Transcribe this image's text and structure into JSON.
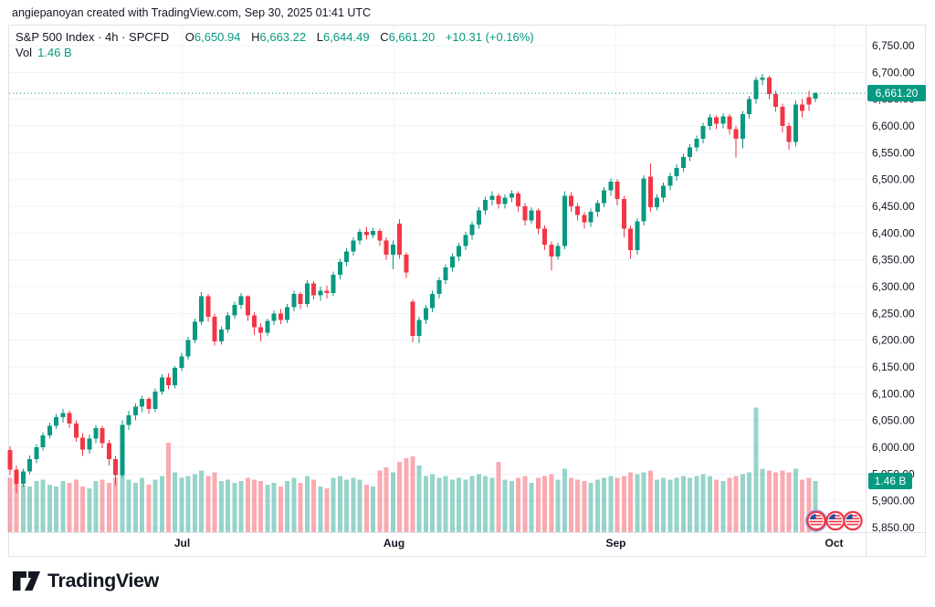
{
  "attribution": "angiepanoyan created with TradingView.com, Sep 30, 2025 01:41 UTC",
  "legend": {
    "title": "S&P 500 Index · 4h · SPCFD",
    "ohlc": [
      {
        "label": "O",
        "value": "6,650.94"
      },
      {
        "label": "H",
        "value": "6,663.22"
      },
      {
        "label": "L",
        "value": "6,644.49"
      },
      {
        "label": "C",
        "value": "6,661.20"
      }
    ],
    "change": "+10.31 (+0.16%)",
    "vol_label": "Vol",
    "vol_value": "1.46 B"
  },
  "price_axis": {
    "labels": [
      "6,750.00",
      "6,700.00",
      "6,650.00",
      "6,600.00",
      "6,550.00",
      "6,500.00",
      "6,450.00",
      "6,400.00",
      "6,350.00",
      "6,300.00",
      "6,250.00",
      "6,200.00",
      "6,150.00",
      "6,100.00",
      "6,050.00",
      "6,000.00",
      "5,950.00",
      "5,900.00",
      "5,850.00"
    ],
    "tick_prices": [
      6750,
      6700,
      6650,
      6600,
      6550,
      6500,
      6450,
      6400,
      6350,
      6300,
      6250,
      6200,
      6150,
      6100,
      6050,
      6000,
      5950,
      5900,
      5850
    ],
    "price_badge": "6,661.20",
    "volume_badge": "1.46 B"
  },
  "time_axis": {
    "months": [
      {
        "label": "Jul",
        "pos": 0.2132
      },
      {
        "label": "Aug",
        "pos": 0.4762
      },
      {
        "label": "Sep",
        "pos": 0.7518
      },
      {
        "label": "Oct",
        "pos": 1.0227
      }
    ]
  },
  "logo": {
    "wordmark": "TradingView"
  },
  "event_icons": [
    "us-flag-event-icon",
    "us-flag-event-icon",
    "us-flag-event-icon"
  ],
  "colors": {
    "up": "#089981",
    "down": "#f23645",
    "vol_up": "rgba(8,153,129,0.42)",
    "vol_down": "rgba(242,54,69,0.42)",
    "grid": "#f0f3fa",
    "axis_text": "#131722",
    "badge_bg": "#089981",
    "border": "#e0e3eb"
  },
  "chart_data": {
    "type": "candlestick+volume",
    "title": "S&P 500 Index · 4h · SPCFD",
    "symbol": "SPCFD",
    "interval": "4h",
    "last": {
      "open": 6650.94,
      "high": 6663.22,
      "low": 6644.49,
      "close": 6661.2,
      "change": 10.31,
      "change_pct": 0.16,
      "volume_b": 1.46
    },
    "price_range": [
      5850,
      6750
    ],
    "price_tick_step": 50,
    "grid": true,
    "candles_ohlcv": [
      [
        5995,
        6002,
        5948,
        5958,
        1.55
      ],
      [
        5958,
        5966,
        5915,
        5932,
        1.65
      ],
      [
        5932,
        5960,
        5926,
        5955,
        1.35
      ],
      [
        5955,
        5985,
        5950,
        5978,
        1.3
      ],
      [
        5978,
        6006,
        5970,
        6000,
        1.45
      ],
      [
        6000,
        6028,
        5994,
        6022,
        1.5
      ],
      [
        6022,
        6046,
        6016,
        6040,
        1.35
      ],
      [
        6040,
        6062,
        6034,
        6056,
        1.3
      ],
      [
        6056,
        6072,
        6046,
        6064,
        1.45
      ],
      [
        6064,
        6068,
        6036,
        6044,
        1.4
      ],
      [
        6044,
        6050,
        6010,
        6018,
        1.5
      ],
      [
        6018,
        6026,
        5984,
        5996,
        1.3
      ],
      [
        5996,
        6024,
        5988,
        6016,
        1.25
      ],
      [
        6016,
        6042,
        6008,
        6036,
        1.45
      ],
      [
        6036,
        6040,
        5998,
        6008,
        1.5
      ],
      [
        6008,
        6014,
        5966,
        5978,
        1.4
      ],
      [
        5978,
        5984,
        5928,
        5948,
        1.55
      ],
      [
        5948,
        6050,
        5944,
        6042,
        1.7
      ],
      [
        6042,
        6068,
        6032,
        6060,
        1.5
      ],
      [
        6060,
        6082,
        6050,
        6076,
        1.4
      ],
      [
        6076,
        6096,
        6066,
        6090,
        1.55
      ],
      [
        6090,
        6094,
        6062,
        6072,
        1.35
      ],
      [
        6072,
        6110,
        6066,
        6104,
        1.5
      ],
      [
        6104,
        6136,
        6098,
        6130,
        1.6
      ],
      [
        6130,
        6138,
        6108,
        6116,
        2.55
      ],
      [
        6116,
        6152,
        6110,
        6148,
        1.7
      ],
      [
        6148,
        6176,
        6142,
        6170,
        1.55
      ],
      [
        6170,
        6206,
        6164,
        6200,
        1.6
      ],
      [
        6200,
        6240,
        6194,
        6234,
        1.65
      ],
      [
        6234,
        6290,
        6228,
        6282,
        1.75
      ],
      [
        6282,
        6286,
        6234,
        6244,
        1.6
      ],
      [
        6244,
        6250,
        6190,
        6198,
        1.7
      ],
      [
        6198,
        6226,
        6192,
        6220,
        1.45
      ],
      [
        6220,
        6252,
        6214,
        6246,
        1.5
      ],
      [
        6246,
        6272,
        6240,
        6266,
        1.4
      ],
      [
        6266,
        6288,
        6258,
        6282,
        1.45
      ],
      [
        6282,
        6284,
        6236,
        6246,
        1.55
      ],
      [
        6246,
        6252,
        6210,
        6224,
        1.5
      ],
      [
        6224,
        6232,
        6198,
        6214,
        1.45
      ],
      [
        6214,
        6240,
        6208,
        6236,
        1.35
      ],
      [
        6236,
        6256,
        6228,
        6250,
        1.4
      ],
      [
        6250,
        6258,
        6230,
        6238,
        1.3
      ],
      [
        6238,
        6268,
        6232,
        6262,
        1.45
      ],
      [
        6262,
        6292,
        6254,
        6286,
        1.55
      ],
      [
        6286,
        6290,
        6258,
        6268,
        1.4
      ],
      [
        6268,
        6312,
        6262,
        6306,
        1.6
      ],
      [
        6306,
        6310,
        6276,
        6284,
        1.5
      ],
      [
        6284,
        6300,
        6274,
        6292,
        1.3
      ],
      [
        6292,
        6302,
        6278,
        6288,
        1.25
      ],
      [
        6288,
        6328,
        6282,
        6322,
        1.55
      ],
      [
        6322,
        6352,
        6314,
        6346,
        1.6
      ],
      [
        6346,
        6372,
        6338,
        6366,
        1.5
      ],
      [
        6366,
        6392,
        6358,
        6386,
        1.55
      ],
      [
        6386,
        6408,
        6378,
        6402,
        1.5
      ],
      [
        6402,
        6412,
        6388,
        6396,
        1.35
      ],
      [
        6396,
        6410,
        6390,
        6404,
        1.3
      ],
      [
        6404,
        6408,
        6376,
        6386,
        1.75
      ],
      [
        6386,
        6392,
        6350,
        6360,
        1.85
      ],
      [
        6360,
        6386,
        6332,
        6378,
        1.7
      ],
      [
        6418,
        6426,
        6352,
        6360,
        2.0
      ],
      [
        6360,
        6364,
        6316,
        6326,
        2.1
      ],
      [
        6272,
        6276,
        6196,
        6208,
        2.15
      ],
      [
        6208,
        6244,
        6194,
        6238,
        1.9
      ],
      [
        6238,
        6266,
        6230,
        6260,
        1.6
      ],
      [
        6260,
        6292,
        6252,
        6286,
        1.65
      ],
      [
        6286,
        6318,
        6278,
        6312,
        1.55
      ],
      [
        6312,
        6342,
        6304,
        6336,
        1.6
      ],
      [
        6336,
        6362,
        6328,
        6356,
        1.5
      ],
      [
        6356,
        6382,
        6348,
        6376,
        1.55
      ],
      [
        6376,
        6402,
        6368,
        6396,
        1.5
      ],
      [
        6396,
        6422,
        6388,
        6416,
        1.6
      ],
      [
        6416,
        6448,
        6408,
        6442,
        1.65
      ],
      [
        6442,
        6468,
        6434,
        6462,
        1.6
      ],
      [
        6462,
        6478,
        6452,
        6470,
        1.55
      ],
      [
        6470,
        6474,
        6446,
        6454,
        2.0
      ],
      [
        6454,
        6472,
        6446,
        6466,
        1.5
      ],
      [
        6466,
        6480,
        6458,
        6474,
        1.45
      ],
      [
        6474,
        6478,
        6440,
        6450,
        1.55
      ],
      [
        6450,
        6456,
        6414,
        6424,
        1.6
      ],
      [
        6424,
        6448,
        6418,
        6442,
        1.4
      ],
      [
        6442,
        6446,
        6398,
        6408,
        1.55
      ],
      [
        6408,
        6414,
        6368,
        6378,
        1.6
      ],
      [
        6378,
        6384,
        6330,
        6356,
        1.65
      ],
      [
        6356,
        6382,
        6350,
        6376,
        1.5
      ],
      [
        6376,
        6478,
        6370,
        6470,
        1.8
      ],
      [
        6470,
        6476,
        6440,
        6450,
        1.55
      ],
      [
        6450,
        6456,
        6424,
        6434,
        1.5
      ],
      [
        6434,
        6440,
        6408,
        6420,
        1.45
      ],
      [
        6420,
        6446,
        6412,
        6440,
        1.4
      ],
      [
        6440,
        6462,
        6430,
        6456,
        1.5
      ],
      [
        6456,
        6486,
        6448,
        6480,
        1.55
      ],
      [
        6480,
        6502,
        6470,
        6496,
        1.6
      ],
      [
        6496,
        6500,
        6452,
        6464,
        1.55
      ],
      [
        6464,
        6470,
        6392,
        6408,
        1.6
      ],
      [
        6408,
        6414,
        6352,
        6368,
        1.7
      ],
      [
        6368,
        6428,
        6360,
        6422,
        1.65
      ],
      [
        6422,
        6508,
        6414,
        6502,
        1.7
      ],
      [
        6505,
        6530,
        6440,
        6448,
        1.75
      ],
      [
        6448,
        6472,
        6442,
        6466,
        1.5
      ],
      [
        6466,
        6494,
        6458,
        6488,
        1.55
      ],
      [
        6488,
        6512,
        6480,
        6506,
        1.5
      ],
      [
        6506,
        6528,
        6498,
        6522,
        1.55
      ],
      [
        6522,
        6548,
        6514,
        6542,
        1.6
      ],
      [
        6542,
        6566,
        6534,
        6560,
        1.55
      ],
      [
        6560,
        6582,
        6552,
        6576,
        1.6
      ],
      [
        6576,
        6606,
        6568,
        6600,
        1.65
      ],
      [
        6600,
        6622,
        6592,
        6616,
        1.6
      ],
      [
        6616,
        6620,
        6594,
        6604,
        1.5
      ],
      [
        6604,
        6624,
        6596,
        6618,
        1.45
      ],
      [
        6618,
        6622,
        6584,
        6594,
        1.55
      ],
      [
        6594,
        6600,
        6541,
        6576,
        1.6
      ],
      [
        6576,
        6628,
        6558,
        6622,
        1.65
      ],
      [
        6622,
        6656,
        6614,
        6650,
        1.7
      ],
      [
        6650,
        6692,
        6642,
        6686,
        3.55
      ],
      [
        6686,
        6697,
        6676,
        6690,
        1.8
      ],
      [
        6690,
        6694,
        6650,
        6660,
        1.75
      ],
      [
        6660,
        6666,
        6626,
        6636,
        1.7
      ],
      [
        6636,
        6642,
        6588,
        6600,
        1.75
      ],
      [
        6600,
        6606,
        6556,
        6570,
        1.7
      ],
      [
        6570,
        6648,
        6562,
        6640,
        1.8
      ],
      [
        6640,
        6650,
        6616,
        6628,
        1.5
      ],
      [
        6654,
        6666,
        6628,
        6640,
        1.55
      ],
      [
        6650.94,
        6663.22,
        6644.49,
        6661.2,
        1.46
      ]
    ]
  }
}
